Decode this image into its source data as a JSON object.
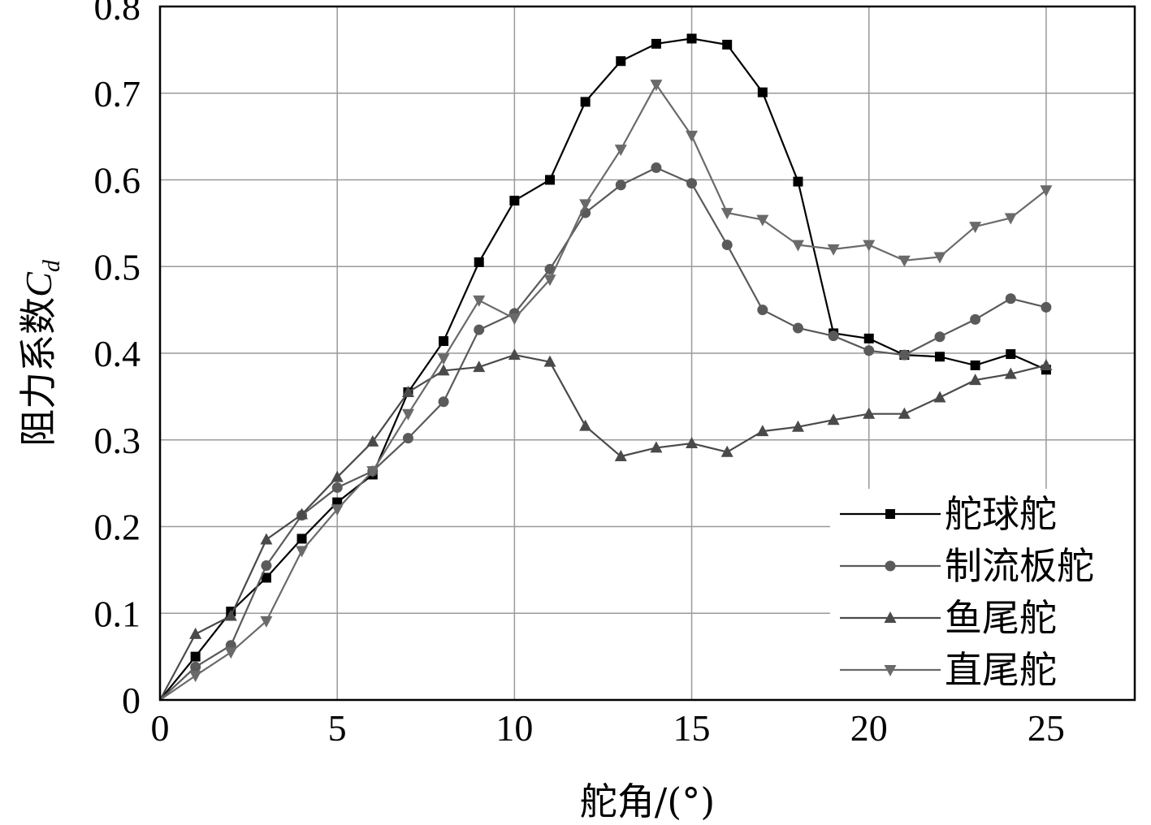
{
  "chart_data": {
    "type": "line",
    "xlabel": "舵角/(°)",
    "ylabel": "阻力系数",
    "ylabel_symbol": "C",
    "ylabel_subscript": "d",
    "xlim": [
      0,
      27.5
    ],
    "ylim": [
      0,
      0.8
    ],
    "xticks": [
      0,
      5,
      10,
      15,
      20,
      25
    ],
    "yticks": [
      0,
      0.1,
      0.2,
      0.3,
      0.4,
      0.5,
      0.6,
      0.7,
      0.8
    ],
    "xtick_labels": [
      "0",
      "5",
      "10",
      "15",
      "20",
      "25"
    ],
    "ytick_labels": [
      "0",
      "0.1",
      "0.2",
      "0.3",
      "0.4",
      "0.5",
      "0.6",
      "0.7",
      "0.8"
    ],
    "grid": true,
    "legend_position": "bottom-right",
    "x": [
      0,
      1,
      2,
      3,
      4,
      5,
      6,
      7,
      8,
      9,
      10,
      11,
      12,
      13,
      14,
      15,
      16,
      17,
      18,
      19,
      20,
      21,
      22,
      23,
      24,
      25
    ],
    "series": [
      {
        "name": "舵球舵",
        "marker": "square",
        "color": "#000000",
        "values": [
          0,
          0.05,
          0.102,
          0.141,
          0.186,
          0.228,
          0.26,
          0.355,
          0.414,
          0.505,
          0.576,
          0.6,
          0.69,
          0.737,
          0.757,
          0.763,
          0.756,
          0.701,
          0.598,
          0.423,
          0.417,
          0.398,
          0.396,
          0.386,
          0.399,
          0.381
        ]
      },
      {
        "name": "制流板舵",
        "marker": "circle",
        "color": "#5a5a5a",
        "values": [
          0,
          0.038,
          0.063,
          0.155,
          0.213,
          0.245,
          0.264,
          0.302,
          0.344,
          0.427,
          0.446,
          0.497,
          0.562,
          0.594,
          0.614,
          0.596,
          0.525,
          0.45,
          0.429,
          0.42,
          0.403,
          0.398,
          0.419,
          0.439,
          0.463,
          0.453
        ]
      },
      {
        "name": "鱼尾舵",
        "marker": "triangle-up",
        "color": "#4a4a4a",
        "values": [
          0,
          0.076,
          0.097,
          0.185,
          0.214,
          0.257,
          0.298,
          0.355,
          0.38,
          0.384,
          0.398,
          0.39,
          0.316,
          0.281,
          0.291,
          0.296,
          0.286,
          0.31,
          0.315,
          0.323,
          0.33,
          0.33,
          0.349,
          0.369,
          0.376,
          0.386
        ]
      },
      {
        "name": "直尾舵",
        "marker": "triangle-down",
        "color": "#6a6a6a",
        "values": [
          0,
          0.028,
          0.055,
          0.091,
          0.172,
          0.22,
          0.264,
          0.33,
          0.394,
          0.461,
          0.44,
          0.485,
          0.572,
          0.635,
          0.71,
          0.651,
          0.562,
          0.554,
          0.525,
          0.52,
          0.525,
          0.507,
          0.511,
          0.546,
          0.556,
          0.588
        ]
      }
    ]
  }
}
